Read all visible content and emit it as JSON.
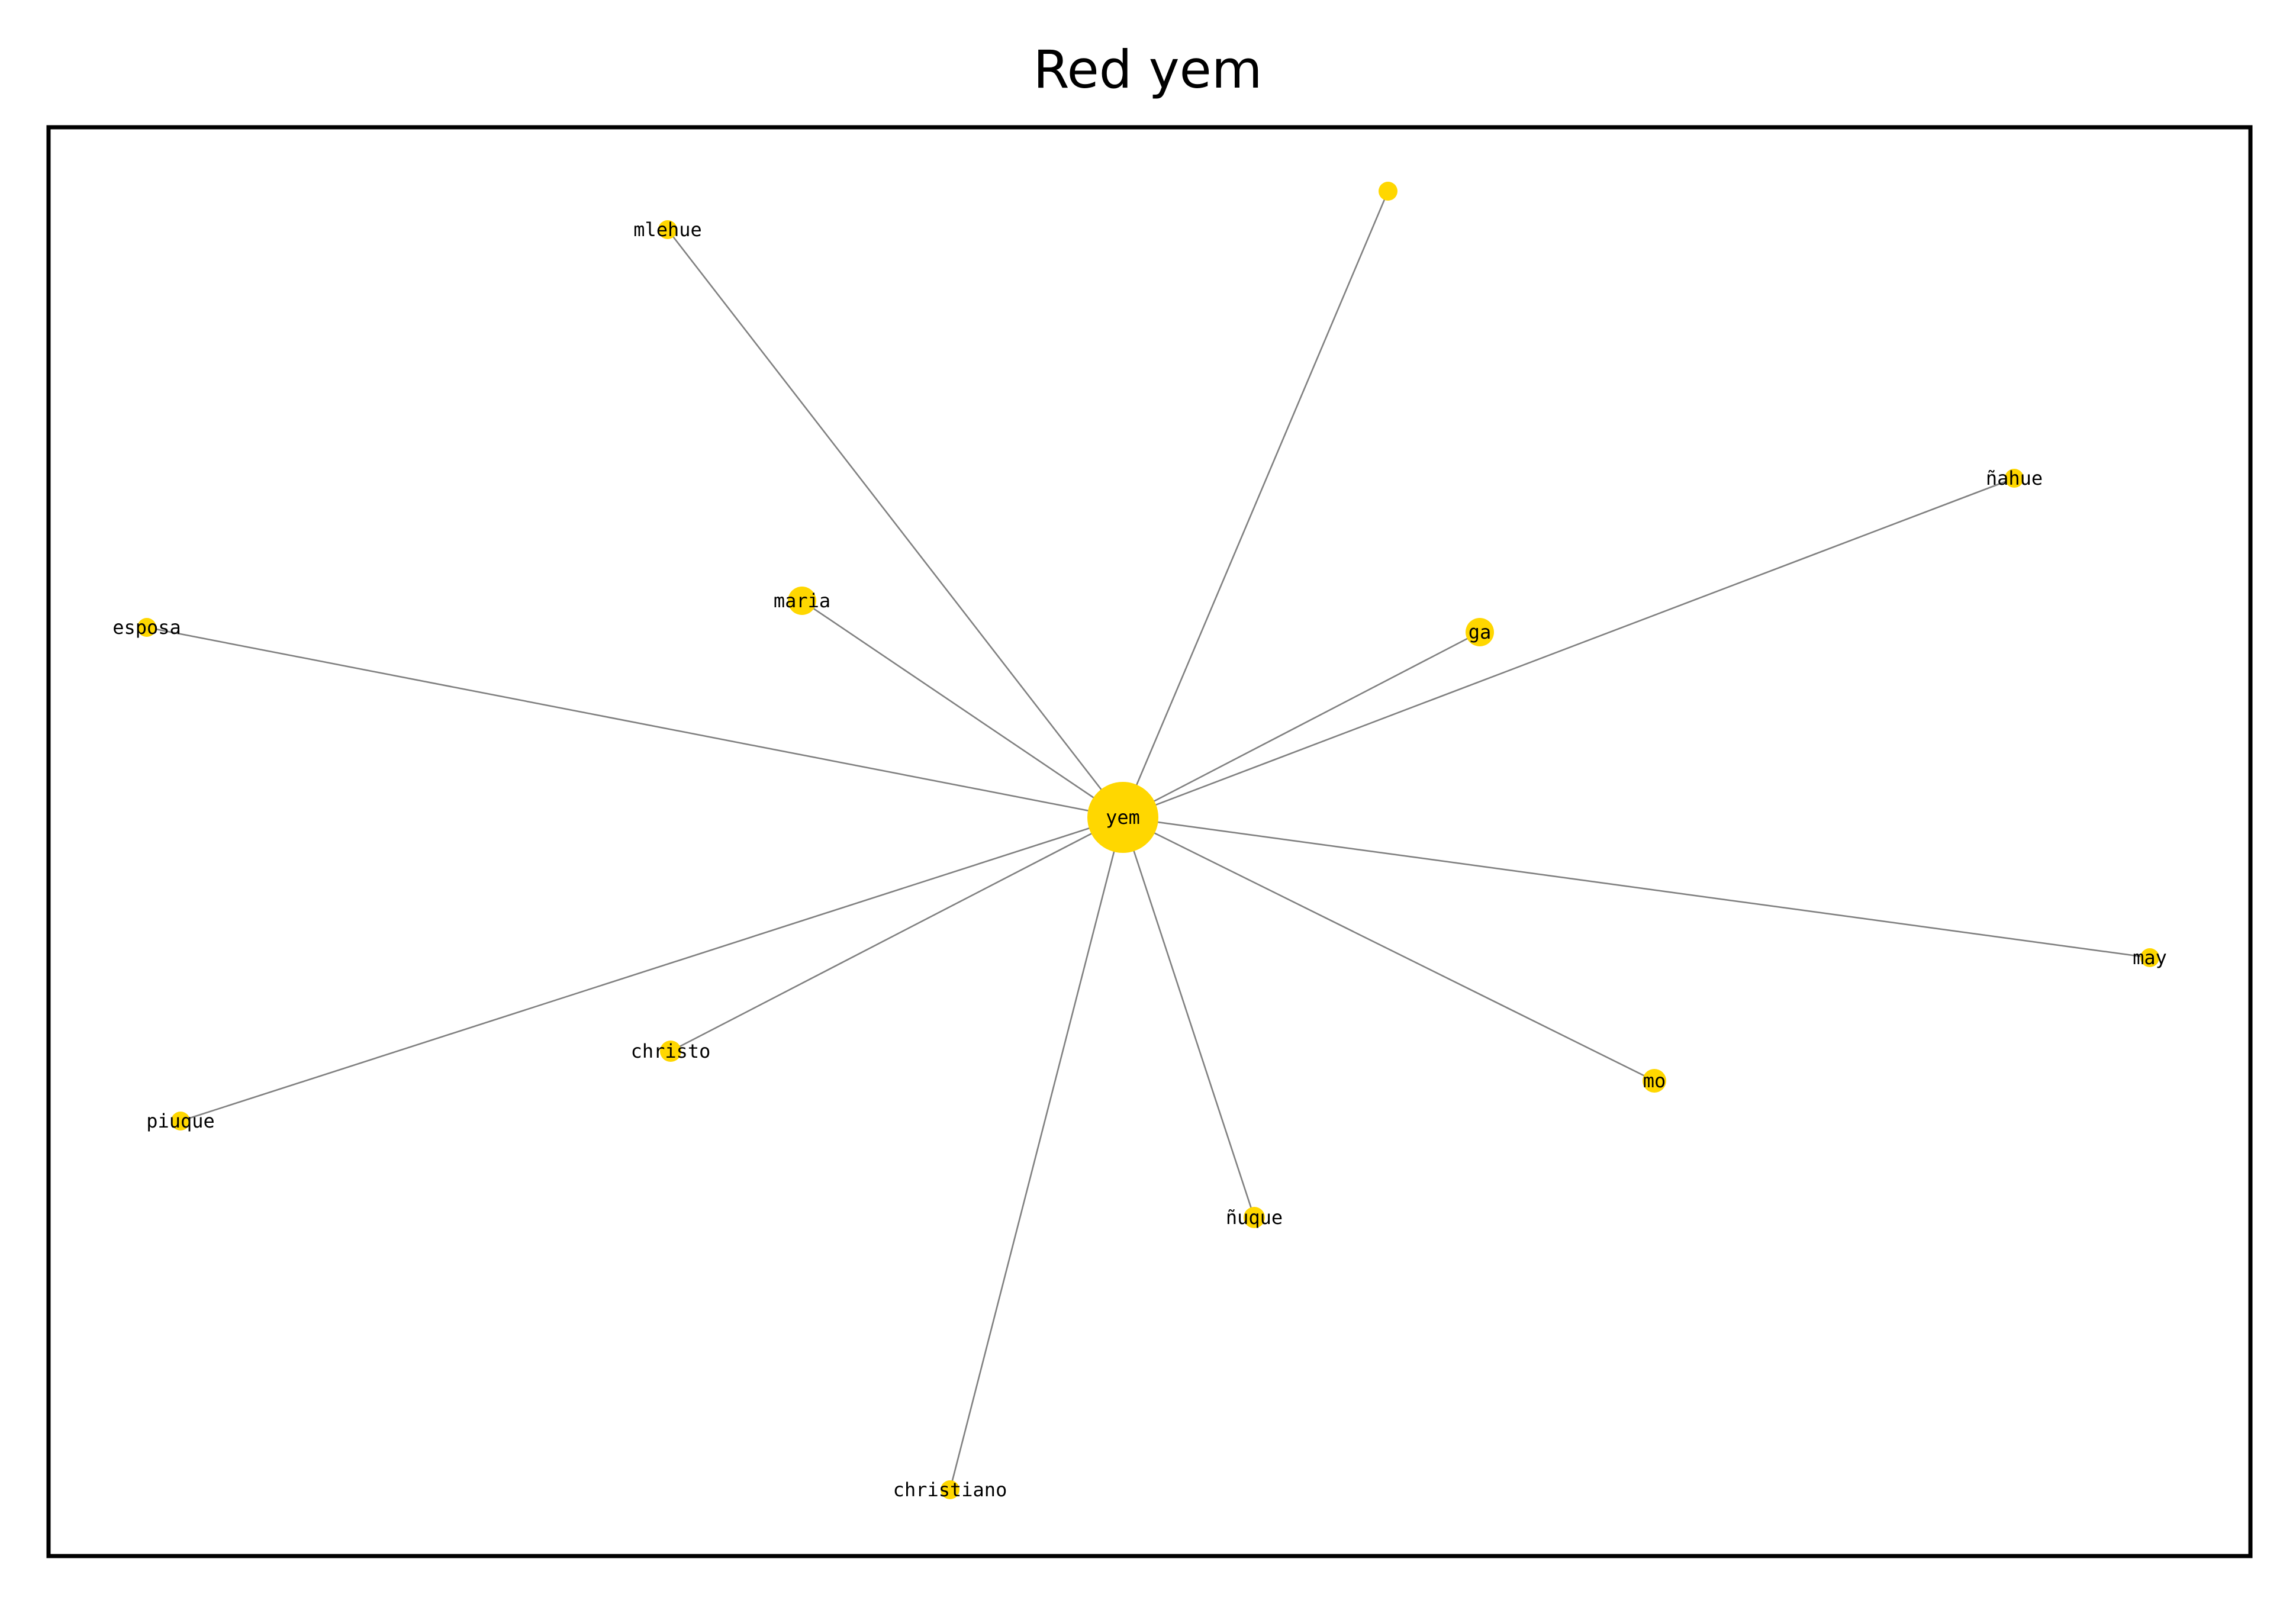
{
  "title": "Red yem",
  "colors": {
    "node": "#FFD700",
    "edge": "#808080",
    "frame": "#000000",
    "background": "#ffffff"
  },
  "nodes": [
    {
      "id": "yem",
      "label": "yem",
      "hub": true
    },
    {
      "id": "mlehue",
      "label": "mlehue"
    },
    {
      "id": "unlabeled",
      "label": ""
    },
    {
      "id": "nahue",
      "label": "ñahue"
    },
    {
      "id": "maria",
      "label": "maria"
    },
    {
      "id": "ga",
      "label": "ga"
    },
    {
      "id": "esposa",
      "label": "esposa"
    },
    {
      "id": "may",
      "label": "may"
    },
    {
      "id": "mo",
      "label": "mo"
    },
    {
      "id": "christo",
      "label": "christo"
    },
    {
      "id": "piuque",
      "label": "piuque"
    },
    {
      "id": "nuque",
      "label": "ñuque"
    },
    {
      "id": "christiano",
      "label": "christiano"
    }
  ],
  "edges": [
    {
      "source": "yem",
      "target": "mlehue"
    },
    {
      "source": "yem",
      "target": "unlabeled"
    },
    {
      "source": "yem",
      "target": "nahue"
    },
    {
      "source": "yem",
      "target": "maria"
    },
    {
      "source": "yem",
      "target": "ga"
    },
    {
      "source": "yem",
      "target": "esposa"
    },
    {
      "source": "yem",
      "target": "may"
    },
    {
      "source": "yem",
      "target": "mo"
    },
    {
      "source": "yem",
      "target": "christo"
    },
    {
      "source": "yem",
      "target": "piuque"
    },
    {
      "source": "yem",
      "target": "nuque"
    },
    {
      "source": "yem",
      "target": "christiano"
    }
  ]
}
